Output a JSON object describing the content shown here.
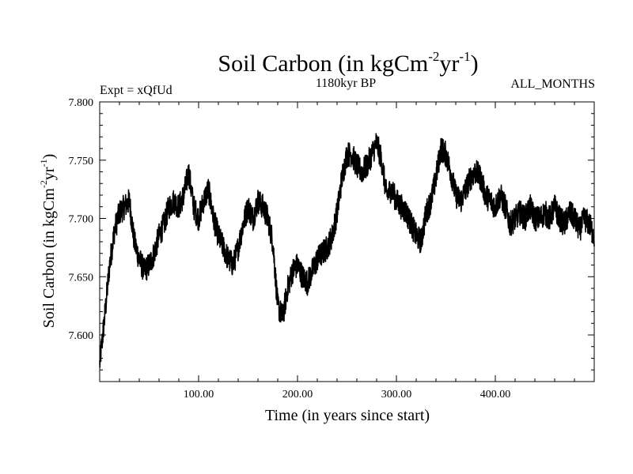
{
  "chart_data": {
    "type": "line",
    "title": {
      "prefix": "Soil Carbon (in kgCm",
      "sup1": "-2",
      "middle": "yr",
      "sup2": "-1",
      "suffix": ")"
    },
    "subtitle": "1180kyr BP",
    "expt_label": "Expt = xQfUd",
    "months_label": "ALL_MONTHS",
    "xlabel": "Time (in years since start)",
    "ylabel": {
      "prefix": "Soil Carbon (in kgCm",
      "sup1": "-2",
      "middle": "yr",
      "sup2": "-1",
      "suffix": ")"
    },
    "xlim": [
      0,
      500
    ],
    "ylim": [
      7.56,
      7.8
    ],
    "x_ticks": [
      100,
      200,
      300,
      400
    ],
    "x_tick_labels": [
      "100.00",
      "200.00",
      "300.00",
      "400.00"
    ],
    "y_ticks": [
      7.6,
      7.65,
      7.7,
      7.75,
      7.8
    ],
    "y_tick_labels": [
      "7.600",
      "7.650",
      "7.700",
      "7.750",
      "7.800"
    ],
    "grid": false,
    "line_color": "#000000",
    "series": [
      {
        "name": "Soil Carbon",
        "x": [
          0,
          5,
          10,
          15,
          20,
          25,
          30,
          35,
          40,
          45,
          50,
          55,
          60,
          65,
          70,
          75,
          80,
          85,
          90,
          95,
          100,
          105,
          110,
          115,
          120,
          125,
          130,
          135,
          140,
          145,
          150,
          155,
          160,
          165,
          170,
          175,
          180,
          185,
          190,
          195,
          200,
          205,
          210,
          215,
          220,
          225,
          230,
          235,
          240,
          245,
          250,
          255,
          260,
          265,
          270,
          275,
          280,
          285,
          290,
          295,
          300,
          305,
          310,
          315,
          320,
          325,
          330,
          335,
          340,
          345,
          350,
          355,
          360,
          365,
          370,
          375,
          380,
          385,
          390,
          395,
          400,
          405,
          410,
          415,
          420,
          425,
          430,
          435,
          440,
          445,
          450,
          455,
          460,
          465,
          470,
          475,
          480,
          485,
          490,
          495,
          500
        ],
        "values": [
          7.575,
          7.615,
          7.66,
          7.69,
          7.705,
          7.71,
          7.715,
          7.68,
          7.665,
          7.655,
          7.66,
          7.67,
          7.685,
          7.695,
          7.71,
          7.715,
          7.71,
          7.72,
          7.74,
          7.71,
          7.7,
          7.715,
          7.725,
          7.7,
          7.685,
          7.675,
          7.665,
          7.66,
          7.675,
          7.695,
          7.71,
          7.7,
          7.715,
          7.71,
          7.7,
          7.68,
          7.625,
          7.615,
          7.64,
          7.655,
          7.66,
          7.65,
          7.645,
          7.655,
          7.665,
          7.67,
          7.675,
          7.685,
          7.705,
          7.735,
          7.755,
          7.755,
          7.745,
          7.74,
          7.745,
          7.755,
          7.765,
          7.75,
          7.72,
          7.725,
          7.715,
          7.71,
          7.705,
          7.695,
          7.685,
          7.68,
          7.705,
          7.715,
          7.735,
          7.76,
          7.755,
          7.74,
          7.72,
          7.715,
          7.725,
          7.735,
          7.74,
          7.735,
          7.72,
          7.715,
          7.71,
          7.72,
          7.71,
          7.695,
          7.7,
          7.705,
          7.7,
          7.71,
          7.7,
          7.7,
          7.705,
          7.7,
          7.71,
          7.7,
          7.695,
          7.705,
          7.7,
          7.69,
          7.7,
          7.695,
          7.685
        ]
      }
    ]
  }
}
